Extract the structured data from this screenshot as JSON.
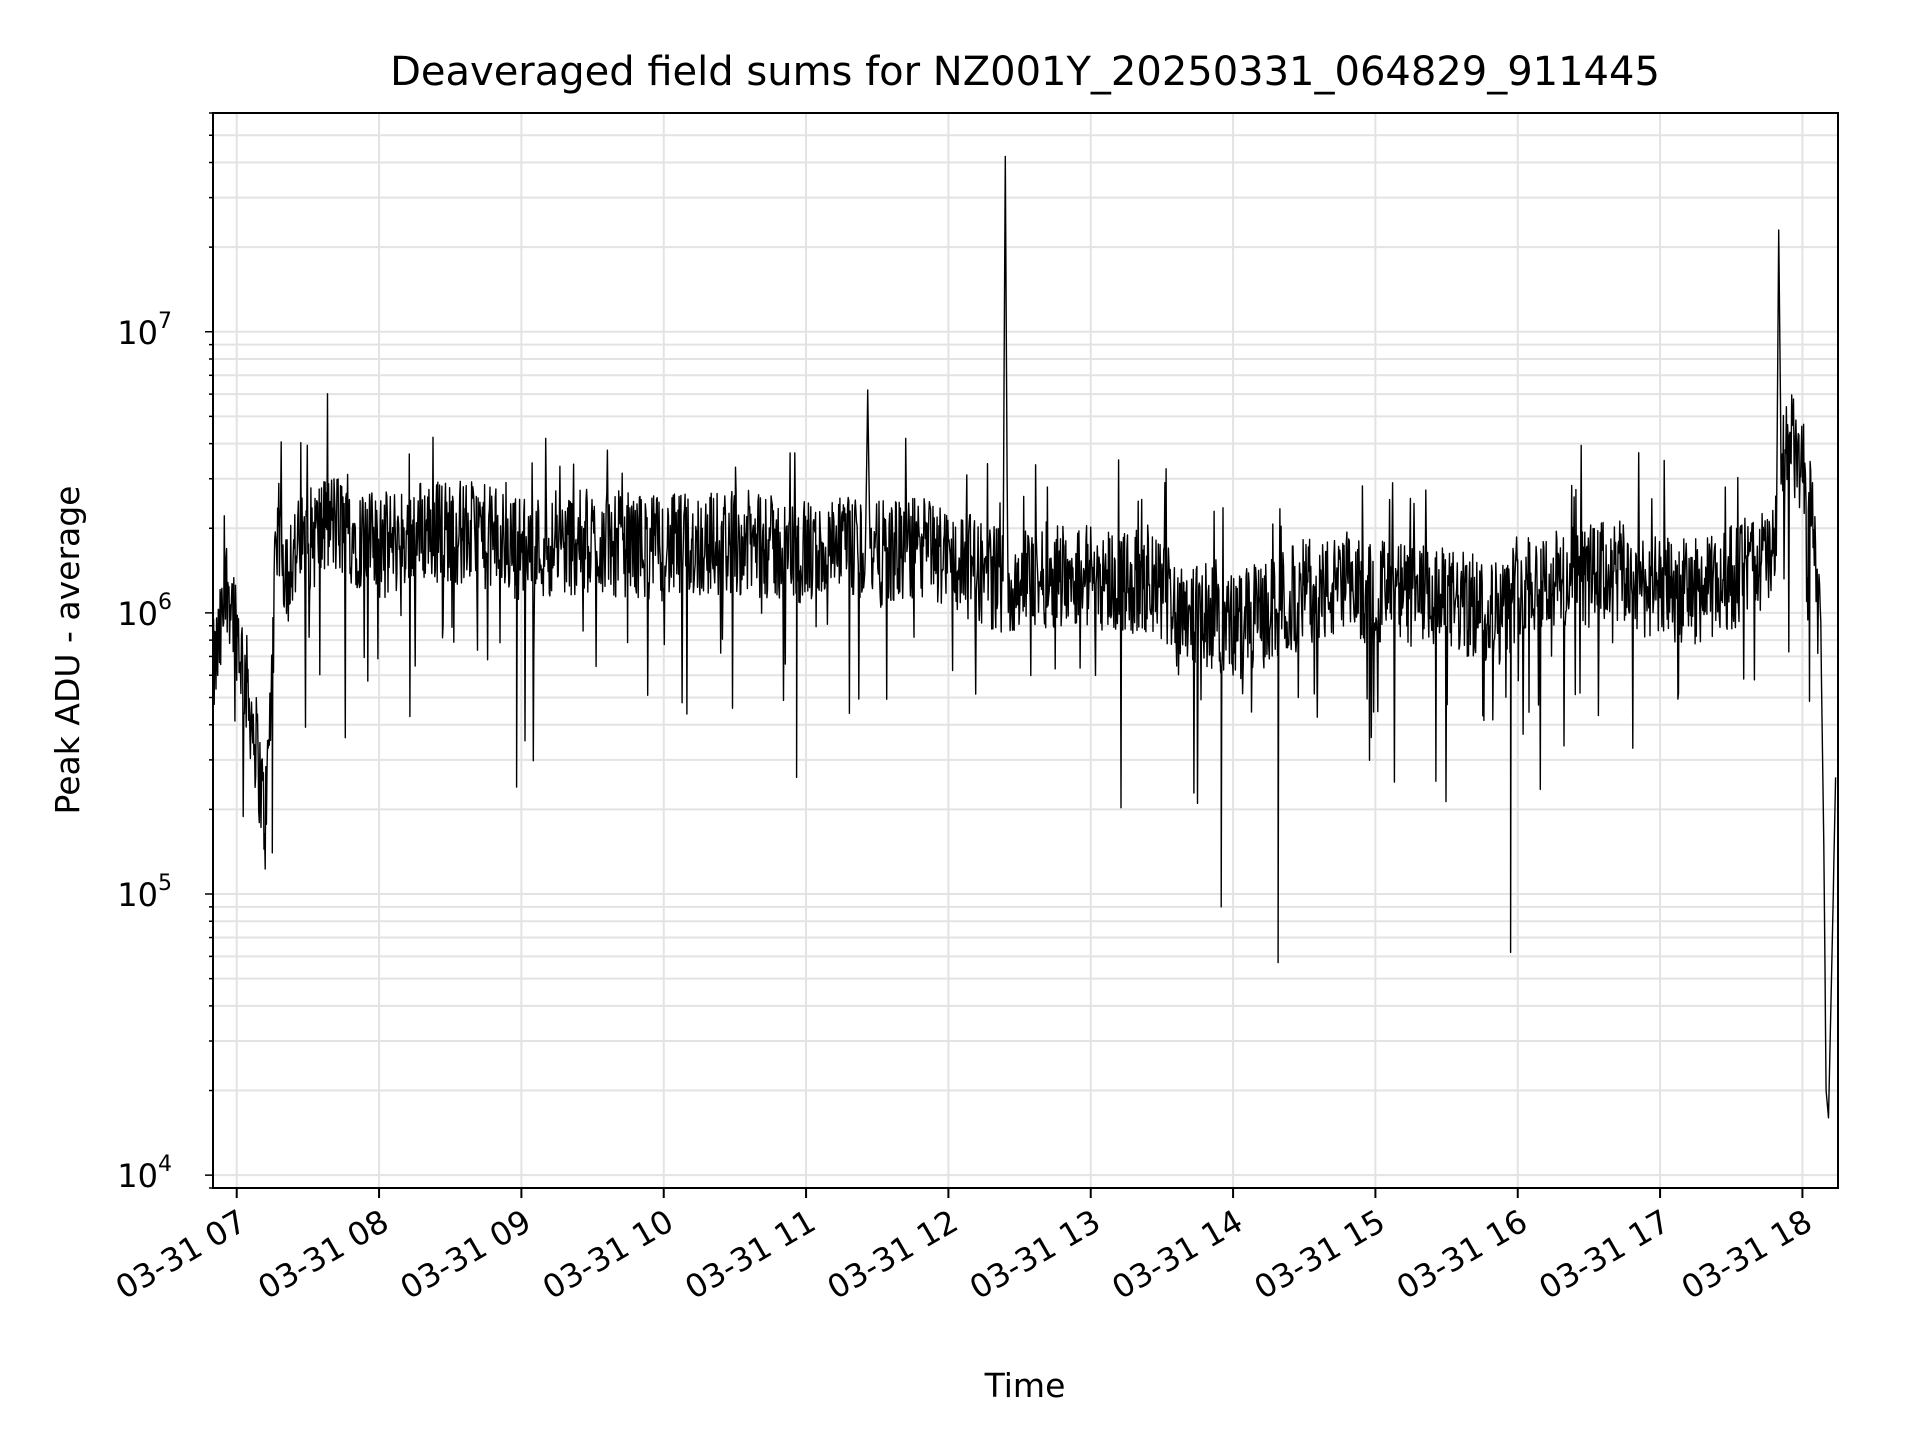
{
  "chart_data": {
    "type": "line",
    "title": "Deaveraged field sums for NZ001Y_20250331_064829_911445",
    "xlabel": "Time",
    "ylabel": "Peak ADU - average",
    "yscale": "log",
    "ylim": [
      9000,
      60000000
    ],
    "xlim": [
      "2025-03-31 06:50",
      "2025-03-31 18:15"
    ],
    "grid": true,
    "line_color": "#000000",
    "grid_color": "#e3e3e3",
    "x_tick_labels": [
      "03-31 07",
      "03-31 08",
      "03-31 09",
      "03-31 10",
      "03-31 11",
      "03-31 12",
      "03-31 13",
      "03-31 14",
      "03-31 15",
      "03-31 16",
      "03-31 17",
      "03-31 18"
    ],
    "y_ticks": [
      {
        "base": "10",
        "exp": "4"
      },
      {
        "base": "10",
        "exp": "5"
      },
      {
        "base": "10",
        "exp": "6"
      },
      {
        "base": "10",
        "exp": "7"
      }
    ],
    "series": [
      {
        "x": [
          "2025-03-31 06:50",
          "2025-03-31 06:53",
          "2025-03-31 06:56",
          "2025-03-31 06:59",
          "2025-03-31 07:02",
          "2025-03-31 07:05",
          "2025-03-31 07:08",
          "2025-03-31 07:10",
          "2025-03-31 07:12",
          "2025-03-31 07:14",
          "2025-03-31 07:16",
          "2025-03-31 07:18",
          "2025-03-31 07:20",
          "2025-03-31 07:24",
          "2025-03-31 07:30",
          "2025-03-31 07:40",
          "2025-03-31 07:50",
          "2025-03-31 08:00",
          "2025-03-31 08:20",
          "2025-03-31 08:40",
          "2025-03-31 09:00",
          "2025-03-31 09:30",
          "2025-03-31 10:00",
          "2025-03-31 10:30",
          "2025-03-31 11:00",
          "2025-03-31 11:25",
          "2025-03-31 11:26",
          "2025-03-31 11:27",
          "2025-03-31 11:50",
          "2025-03-31 12:23",
          "2025-03-31 12:24",
          "2025-03-31 12:25",
          "2025-03-31 12:50",
          "2025-03-31 13:15",
          "2025-03-31 13:30",
          "2025-03-31 13:45",
          "2025-03-31 14:00",
          "2025-03-31 14:15",
          "2025-03-31 14:30",
          "2025-03-31 15:00",
          "2025-03-31 15:30",
          "2025-03-31 15:55",
          "2025-03-31 16:00",
          "2025-03-31 16:20",
          "2025-03-31 16:40",
          "2025-03-31 17:00",
          "2025-03-31 17:20",
          "2025-03-31 17:40",
          "2025-03-31 17:49",
          "2025-03-31 17:50",
          "2025-03-31 17:51",
          "2025-03-31 17:55",
          "2025-03-31 18:00",
          "2025-03-31 18:05",
          "2025-03-31 18:08",
          "2025-03-31 18:09",
          "2025-03-31 18:10",
          "2025-03-31 18:11",
          "2025-03-31 18:12",
          "2025-03-31 18:13",
          "2025-03-31 18:14"
        ],
        "y": [
          600000,
          800000,
          1300000,
          1000000,
          700000,
          500000,
          350000,
          250000,
          180000,
          400000,
          1200000,
          2000000,
          1500000,
          1600000,
          1800000,
          2100000,
          1900000,
          1700000,
          2000000,
          1900000,
          1700000,
          1800000,
          1700000,
          1800000,
          1600000,
          1700000,
          6200000,
          1600000,
          1700000,
          1300000,
          42000000,
          1300000,
          1400000,
          1300000,
          1200000,
          1000000,
          900000,
          1000000,
          1200000,
          1200000,
          1100000,
          1000000,
          1300000,
          1300000,
          1400000,
          1200000,
          1200000,
          1500000,
          1600000,
          23000000,
          3500000,
          4000000,
          3200000,
          2000000,
          600000,
          150000,
          20000,
          16000,
          40000,
          100000,
          260000
        ]
      }
    ],
    "spikes_down": [
      {
        "x": "2025-03-31 07:15",
        "y": 140000
      },
      {
        "x": "2025-03-31 08:58",
        "y": 240000
      },
      {
        "x": "2025-03-31 10:56",
        "y": 260000
      },
      {
        "x": "2025-03-31 13:55",
        "y": 90000
      },
      {
        "x": "2025-03-31 14:19",
        "y": 57000
      },
      {
        "x": "2025-03-31 15:57",
        "y": 62000
      }
    ]
  }
}
